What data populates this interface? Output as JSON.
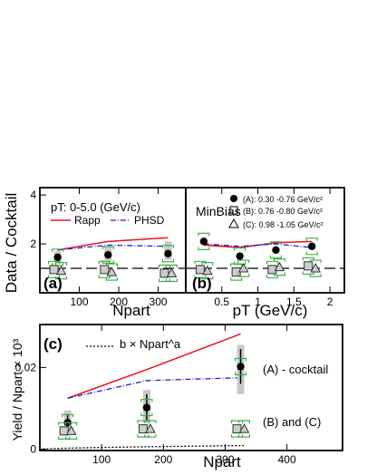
{
  "chart_data": [
    {
      "panel": "(a)",
      "type": "scatter",
      "annotation": "pT: 0-5.0 (GeV/c)",
      "ylabel": "Data / Cocktail",
      "xlabel": "Npart",
      "xlim": [
        0,
        370
      ],
      "ylim": [
        0,
        4.3
      ],
      "xticks": [
        100,
        200,
        300
      ],
      "yticks": [
        2,
        4
      ],
      "reference_line": 1,
      "x": [
        45,
        173,
        325
      ],
      "series": [
        {
          "name": "(A)",
          "marker": "filled-circle",
          "values": [
            1.45,
            1.55,
            1.6
          ],
          "syst_lo": [
            1.25,
            1.3,
            1.35
          ],
          "syst_hi": [
            1.7,
            1.85,
            2.1
          ]
        },
        {
          "name": "(B)",
          "marker": "open-square",
          "values": [
            0.95,
            0.95,
            0.8
          ]
        },
        {
          "name": "(C)",
          "marker": "open-triangle",
          "values": [
            0.9,
            0.85,
            0.8
          ]
        },
        {
          "name": "Rapp",
          "line": "solid",
          "color": "#e8151b",
          "values": [
            1.75,
            2.1,
            2.25
          ]
        },
        {
          "name": "PHSD",
          "line": "dash-dot",
          "color": "#2222cc",
          "values": [
            1.75,
            1.95,
            1.9
          ]
        }
      ]
    },
    {
      "panel": "(b)",
      "type": "scatter",
      "annotation": "MinBias",
      "xlabel": "pT (GeV/c)",
      "xlim": [
        0,
        2.2
      ],
      "ylim": [
        0,
        4.3
      ],
      "xticks": [
        0.5,
        1,
        1.5,
        2
      ],
      "reference_line": 1,
      "x": [
        0.25,
        0.75,
        1.25,
        1.75
      ],
      "legend": [
        {
          "marker": "filled-circle",
          "text": "(A): 0.30 -0.76 GeV/c²"
        },
        {
          "marker": "open-square",
          "text": "(B): 0.76 -0.80 GeV/c²"
        },
        {
          "marker": "open-triangle",
          "text": "(C): 0.98 -1.05 GeV/c²"
        }
      ],
      "series": [
        {
          "name": "(A)",
          "marker": "filled-circle",
          "values": [
            2.1,
            1.5,
            1.75,
            1.9
          ]
        },
        {
          "name": "(B)",
          "marker": "open-square",
          "values": [
            0.95,
            0.85,
            0.95,
            1.1
          ]
        },
        {
          "name": "(C)",
          "marker": "open-triangle",
          "values": [
            0.9,
            1.0,
            1.05,
            1.0
          ]
        },
        {
          "name": "Rapp",
          "line": "solid",
          "color": "#e8151b",
          "values": [
            1.95,
            1.85,
            2.05,
            2.1
          ]
        },
        {
          "name": "PHSD",
          "line": "dash-dot",
          "color": "#2222cc",
          "values": [
            2.0,
            1.9,
            2.0,
            1.85
          ]
        }
      ]
    },
    {
      "panel": "(c)",
      "type": "scatter",
      "legend_text": "b × Npart^a",
      "ylabel": "Yield / Npart × 10³",
      "xlabel": "Npart",
      "xlim": [
        0,
        490
      ],
      "ylim": [
        -0.0003,
        0.0305
      ],
      "xticks": [
        100,
        200,
        300,
        400
      ],
      "yticks": [
        0,
        0.02
      ],
      "ytick_labels": [
        "0",
        "0.02"
      ],
      "x": [
        45,
        173,
        325
      ],
      "labels": [
        "(A) - cocktail",
        "(B) and (C)"
      ],
      "series": [
        {
          "name": "(A) - cocktail",
          "marker": "filled-circle",
          "values": [
            0.0065,
            0.0102,
            0.0202
          ],
          "err_lo": [
            0.0045,
            0.007,
            0.016
          ],
          "err_hi": [
            0.0085,
            0.0135,
            0.0245
          ],
          "syst_lo": [
            0.0035,
            0.0065,
            0.0135
          ],
          "syst_hi": [
            0.0095,
            0.0145,
            0.0255
          ]
        },
        {
          "name": "(B)",
          "marker": "open-square",
          "values": [
            0.0045,
            0.005,
            0.005
          ]
        },
        {
          "name": "(C)",
          "marker": "open-triangle",
          "values": [
            0.0045,
            0.005,
            0.005
          ]
        },
        {
          "name": "Rapp",
          "line": "solid",
          "color": "#e8151b",
          "values": [
            0.0125,
            0.0195,
            0.0282
          ]
        },
        {
          "name": "PHSD",
          "line": "dash-dot",
          "color": "#2222cc",
          "values": [
            0.0125,
            0.0168,
            0.0175
          ]
        },
        {
          "name": "fit",
          "line": "dotted",
          "color": "#000000",
          "a": 0.6,
          "b": 0.00062
        }
      ]
    }
  ]
}
